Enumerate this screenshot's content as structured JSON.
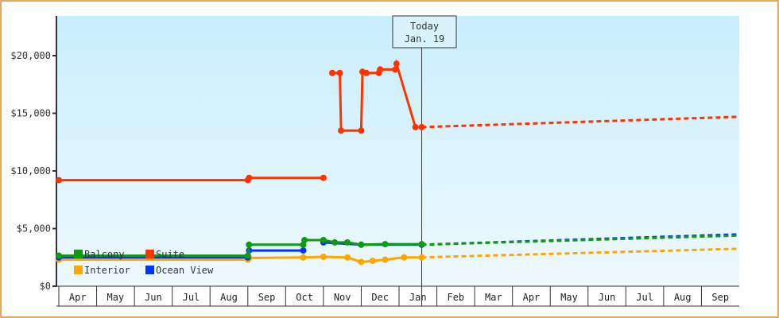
{
  "chart_data": {
    "type": "line",
    "title": "",
    "xlabel": "",
    "ylabel": "",
    "ylim": [
      0,
      23000
    ],
    "y_ticks": [
      "$0",
      "$5,000",
      "$10,000",
      "$15,000",
      "$20,000"
    ],
    "y_tick_values": [
      0,
      5000,
      10000,
      15000,
      20000
    ],
    "x_months": [
      "Apr",
      "May",
      "Jun",
      "Jul",
      "Aug",
      "Sep",
      "Oct",
      "Nov",
      "Dec",
      "Jan",
      "Feb",
      "Mar",
      "Apr",
      "May",
      "Jun",
      "Jul",
      "Aug",
      "Sep"
    ],
    "today_marker": {
      "line1": "Today",
      "line2": "Jan. 19"
    },
    "legend": [
      {
        "name": "Balcony",
        "color": "#119911"
      },
      {
        "name": "Suite",
        "color": "#ff3300"
      },
      {
        "name": "Interior",
        "color": "#ffa500"
      },
      {
        "name": "Ocean View",
        "color": "#0033ff"
      }
    ],
    "series": [
      {
        "name": "Suite",
        "color": "#ff3300",
        "historical": [
          [
            "Apr 1",
            9200
          ],
          [
            "Sep 1",
            9200
          ],
          [
            "Sep 2",
            9400
          ],
          [
            "Nov 1",
            9400
          ]
        ],
        "historical2": [
          [
            "Nov 8",
            18500
          ],
          [
            "Nov 14",
            18500
          ],
          [
            "Nov 15",
            13500
          ],
          [
            "Dec 1",
            13500
          ],
          [
            "Dec 2",
            18600
          ],
          [
            "Dec 5",
            18500
          ],
          [
            "Dec 15",
            18500
          ],
          [
            "Dec 16",
            18800
          ],
          [
            "Dec 28",
            18800
          ],
          [
            "Dec 29",
            19300
          ],
          [
            "Jan 14",
            13800
          ],
          [
            "Jan 19",
            13800
          ]
        ],
        "forecast": [
          [
            "Jan 19",
            13800
          ],
          [
            "Sep 30",
            14700
          ]
        ]
      },
      {
        "name": "Balcony",
        "color": "#119911",
        "historical": [
          [
            "Apr 1",
            2650
          ],
          [
            "Sep 1",
            2650
          ],
          [
            "Sep 2",
            3600
          ],
          [
            "Oct 15",
            3600
          ],
          [
            "Oct 16",
            4000
          ],
          [
            "Nov 1",
            4000
          ],
          [
            "Nov 10",
            3800
          ],
          [
            "Nov 20",
            3800
          ],
          [
            "Dec 1",
            3600
          ],
          [
            "Dec 20",
            3650
          ],
          [
            "Jan 19",
            3650
          ]
        ],
        "forecast": [
          [
            "Jan 19",
            3600
          ],
          [
            "Sep 30",
            4400
          ]
        ]
      },
      {
        "name": "Ocean View",
        "color": "#0033ff",
        "historical": [
          [
            "Apr 1",
            2500
          ],
          [
            "Sep 1",
            2500
          ],
          [
            "Sep 2",
            3100
          ],
          [
            "Oct 15",
            3100
          ]
        ],
        "historical2": [
          [
            "Nov 1",
            3800
          ],
          [
            "Dec 1",
            3600
          ],
          [
            "Jan 19",
            3600
          ]
        ],
        "forecast": [
          [
            "Jan 19",
            3600
          ],
          [
            "Sep 30",
            4500
          ]
        ]
      },
      {
        "name": "Interior",
        "color": "#ffa500",
        "historical": [
          [
            "Apr 1",
            2300
          ],
          [
            "Sep 1",
            2300
          ],
          [
            "Sep 2",
            2450
          ],
          [
            "Oct 15",
            2500
          ],
          [
            "Nov 1",
            2550
          ],
          [
            "Nov 20",
            2500
          ],
          [
            "Dec 1",
            2100
          ],
          [
            "Dec 10",
            2200
          ],
          [
            "Dec 20",
            2300
          ],
          [
            "Jan 5",
            2500
          ],
          [
            "Jan 19",
            2500
          ]
        ],
        "forecast": [
          [
            "Jan 19",
            2500
          ],
          [
            "Sep 30",
            3250
          ]
        ]
      }
    ]
  }
}
